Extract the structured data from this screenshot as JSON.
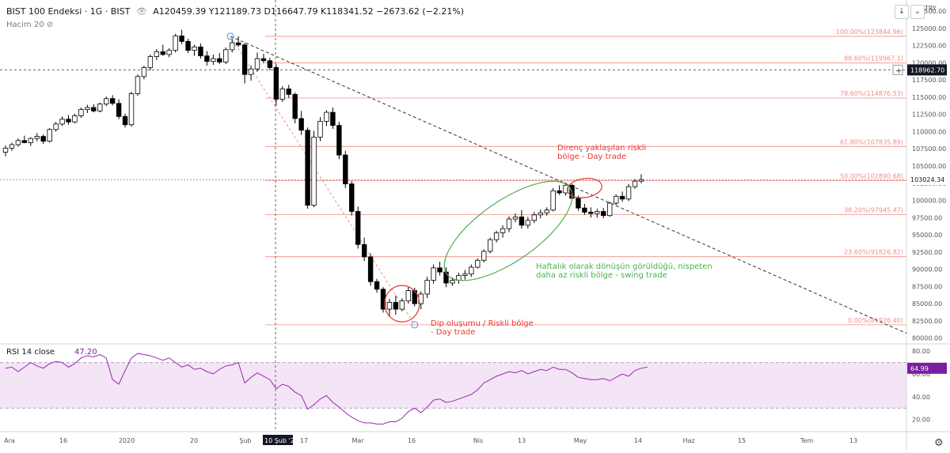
{
  "header": {
    "symbol": "BIST 100 Endeksi · 1G · BIST",
    "ohlc": "A120459.39 Y121189.73 D116647.79 K118341.52 −2673.62 (−2.21%)",
    "volume_label": "Hacim 20",
    "currency": "TRY"
  },
  "rsi_label": {
    "name": "RSI 14 close",
    "value": "47.20"
  },
  "buttons": {
    "down": "↓",
    "settings": "⚙"
  },
  "colors": {
    "up": "#ffffff",
    "down": "#000000",
    "fib": "#f28b82",
    "fib_text": "#f28b82",
    "red_note": "#e53935",
    "green_note": "#4caf50",
    "rsi_line": "#9c27b0",
    "rsi_band": "#f3e5f5",
    "price_badge": "#131722",
    "rsi_badge": "#7b1fa2"
  },
  "chart_data": {
    "type": "candlestick",
    "price_axis": {
      "min": 80000,
      "max": 127500,
      "ticks": [
        127500,
        125000,
        122500,
        120000,
        117500,
        115000,
        112500,
        110000,
        107500,
        105000,
        102500,
        100000,
        97500,
        95000,
        92500,
        90000,
        87500,
        85000,
        82500,
        80000
      ]
    },
    "x_labels": [
      "Ara",
      "16",
      "2020",
      "20",
      "Şub",
      "10 Şub '20",
      "17",
      "Mar",
      "16",
      "Nis",
      "13",
      "May",
      "14",
      "Haz",
      "15",
      "Tem",
      "13"
    ],
    "last_price_badge": "103024.34",
    "crosshair_price_badge": "118962.70",
    "crosshair_date": "10 Şub '20",
    "fib_levels": [
      {
        "label": "100.00%(123844.96)",
        "value": 123844.96
      },
      {
        "label": "88.60%(119967.1)",
        "value": 119967.1
      },
      {
        "label": "78.60%(114876.53)",
        "value": 114876.53
      },
      {
        "label": "61.80%(107835.89)",
        "value": 107835.89
      },
      {
        "label": "50.00%(102890.68)",
        "value": 102890.68
      },
      {
        "label": "38.20%(97945.47)",
        "value": 97945.47
      },
      {
        "label": "23.60%(91826.82)",
        "value": 91826.82
      },
      {
        "label": "0.00%(81926.40)",
        "value": 81926.4
      }
    ],
    "candles": [
      [
        107000,
        108000,
        106400,
        107600
      ],
      [
        107600,
        108400,
        107200,
        108100
      ],
      [
        108100,
        109000,
        107800,
        108700
      ],
      [
        108700,
        109400,
        108300,
        108400
      ],
      [
        108400,
        109200,
        107900,
        109000
      ],
      [
        109000,
        109800,
        108600,
        109300
      ],
      [
        109300,
        109600,
        108200,
        108600
      ],
      [
        108600,
        110500,
        108400,
        110300
      ],
      [
        110300,
        111400,
        110000,
        111100
      ],
      [
        111100,
        112200,
        110800,
        111800
      ],
      [
        111800,
        112400,
        111000,
        111400
      ],
      [
        111400,
        112600,
        111200,
        112300
      ],
      [
        112300,
        113500,
        112000,
        113200
      ],
      [
        113200,
        113900,
        112700,
        113500
      ],
      [
        113500,
        114000,
        112800,
        113000
      ],
      [
        113000,
        114200,
        112800,
        114000
      ],
      [
        114000,
        115100,
        113700,
        114800
      ],
      [
        114800,
        115300,
        113800,
        114100
      ],
      [
        114100,
        114700,
        111800,
        112200
      ],
      [
        112200,
        112600,
        110600,
        111000
      ],
      [
        111000,
        115800,
        110700,
        115500
      ],
      [
        115500,
        118300,
        115200,
        118000
      ],
      [
        118000,
        119600,
        117600,
        119300
      ],
      [
        119300,
        121200,
        118900,
        120900
      ],
      [
        120900,
        122000,
        120400,
        121600
      ],
      [
        121600,
        122600,
        121000,
        121200
      ],
      [
        121200,
        122100,
        120800,
        121800
      ],
      [
        121800,
        124200,
        121500,
        123900
      ],
      [
        123900,
        124800,
        122700,
        123100
      ],
      [
        123100,
        123500,
        121400,
        121800
      ],
      [
        121800,
        122600,
        121000,
        122300
      ],
      [
        122300,
        122800,
        120600,
        121000
      ],
      [
        121000,
        121700,
        119600,
        120200
      ],
      [
        120200,
        121200,
        119700,
        120600
      ],
      [
        120600,
        121400,
        119800,
        120100
      ],
      [
        120100,
        122200,
        119800,
        121900
      ],
      [
        121900,
        123400,
        121500,
        122900
      ],
      [
        122900,
        123845,
        122300,
        122600
      ],
      [
        122600,
        122900,
        117000,
        118300
      ],
      [
        118300,
        119600,
        117400,
        119100
      ],
      [
        119100,
        121500,
        118700,
        120600
      ],
      [
        120600,
        121300,
        119900,
        120300
      ],
      [
        120300,
        120700,
        118900,
        119300
      ],
      [
        119300,
        119800,
        113800,
        114700
      ],
      [
        114700,
        116600,
        114300,
        116200
      ],
      [
        116200,
        116800,
        114900,
        115400
      ],
      [
        115400,
        115700,
        111200,
        111900
      ],
      [
        111900,
        113000,
        109500,
        110200
      ],
      [
        110200,
        110600,
        98800,
        99300
      ],
      [
        99300,
        110100,
        99000,
        109200
      ],
      [
        109200,
        112100,
        108600,
        111500
      ],
      [
        111500,
        113100,
        110800,
        112800
      ],
      [
        112800,
        113500,
        110400,
        110900
      ],
      [
        110900,
        111400,
        106000,
        106600
      ],
      [
        106600,
        107200,
        101800,
        102400
      ],
      [
        102400,
        102800,
        97800,
        98400
      ],
      [
        98400,
        99100,
        93000,
        93600
      ],
      [
        93600,
        94600,
        91200,
        91800
      ],
      [
        91800,
        92300,
        87600,
        88200
      ],
      [
        88200,
        88600,
        86600,
        87100
      ],
      [
        87100,
        87400,
        83700,
        84200
      ],
      [
        84200,
        85700,
        83100,
        85200
      ],
      [
        85200,
        86200,
        83400,
        84200
      ],
      [
        84200,
        85800,
        83900,
        85400
      ],
      [
        85400,
        87400,
        85000,
        86900
      ],
      [
        86900,
        87300,
        84600,
        85000
      ],
      [
        85000,
        86800,
        84200,
        86400
      ],
      [
        86400,
        88900,
        85800,
        88400
      ],
      [
        88400,
        90700,
        87900,
        90200
      ],
      [
        90200,
        91100,
        89100,
        89600
      ],
      [
        89600,
        90300,
        87400,
        88000
      ],
      [
        88000,
        88800,
        87600,
        88400
      ],
      [
        88400,
        89500,
        87900,
        89100
      ],
      [
        89100,
        89900,
        88500,
        89300
      ],
      [
        89300,
        90700,
        88900,
        90300
      ],
      [
        90300,
        91600,
        90100,
        91300
      ],
      [
        91300,
        92900,
        91000,
        92600
      ],
      [
        92600,
        94600,
        92300,
        94300
      ],
      [
        94300,
        95600,
        93900,
        95300
      ],
      [
        95300,
        96400,
        94600,
        95900
      ],
      [
        95900,
        97700,
        95400,
        97300
      ],
      [
        97300,
        98100,
        96800,
        97600
      ],
      [
        97600,
        98600,
        95900,
        96400
      ],
      [
        96400,
        97600,
        95900,
        97100
      ],
      [
        97100,
        98300,
        96700,
        97900
      ],
      [
        97900,
        98700,
        97400,
        98200
      ],
      [
        98200,
        99000,
        97800,
        98600
      ],
      [
        98600,
        101800,
        98400,
        101400
      ],
      [
        101400,
        102200,
        100800,
        101100
      ],
      [
        101100,
        102600,
        100700,
        102200
      ],
      [
        102200,
        102400,
        99900,
        100300
      ],
      [
        100300,
        100700,
        98500,
        98900
      ],
      [
        98900,
        99500,
        97900,
        98300
      ],
      [
        98300,
        99000,
        97500,
        98100
      ],
      [
        98100,
        98800,
        97500,
        98400
      ],
      [
        98400,
        98900,
        97400,
        97800
      ],
      [
        97800,
        99800,
        97600,
        99600
      ],
      [
        99600,
        100900,
        99300,
        100600
      ],
      [
        100600,
        101300,
        99800,
        100200
      ],
      [
        100200,
        102400,
        99900,
        102000
      ],
      [
        102000,
        103100,
        101700,
        102800
      ],
      [
        102800,
        103800,
        102500,
        103024
      ]
    ],
    "rsi": {
      "label": "RSI 14 close",
      "value": 47.2,
      "last_badge": "64.99",
      "axis_ticks": [
        80,
        60,
        40,
        20
      ],
      "band": [
        30,
        70
      ],
      "values": [
        65,
        66,
        62,
        66,
        70,
        67,
        65,
        69,
        71,
        70,
        66,
        69,
        74,
        76,
        75,
        77,
        74,
        55,
        51,
        63,
        74,
        78,
        77,
        76,
        74,
        72,
        74,
        70,
        66,
        68,
        64,
        65,
        62,
        60,
        64,
        67,
        68,
        70,
        52,
        57,
        61,
        58,
        55,
        47,
        51,
        49,
        44,
        41,
        29,
        33,
        38,
        41,
        35,
        31,
        26,
        22,
        19,
        17,
        17,
        16,
        16,
        18,
        18,
        21,
        27,
        30,
        26,
        31,
        37,
        38,
        35,
        36,
        38,
        40,
        42,
        46,
        52,
        55,
        58,
        60,
        62,
        61,
        63,
        60,
        62,
        64,
        63,
        66,
        64,
        64,
        61,
        57,
        56,
        55,
        55,
        56,
        54,
        57,
        60,
        58,
        63,
        65,
        66
      ]
    },
    "annotations": [
      {
        "text": "Direnc yaklaşılan riskli\nbölge - Day trade",
        "lines": [
          "Direnç yaklaşılan riskli",
          "bölge - Day trade"
        ]
      },
      {
        "lines": [
          "Haftalık olarak dönüşün görüldüğü, nispeten",
          "daha az riskli bölge - swing trade"
        ]
      },
      {
        "lines": [
          "Dip oluşumu / Riskli bölge",
          "- Day trade"
        ]
      }
    ]
  }
}
